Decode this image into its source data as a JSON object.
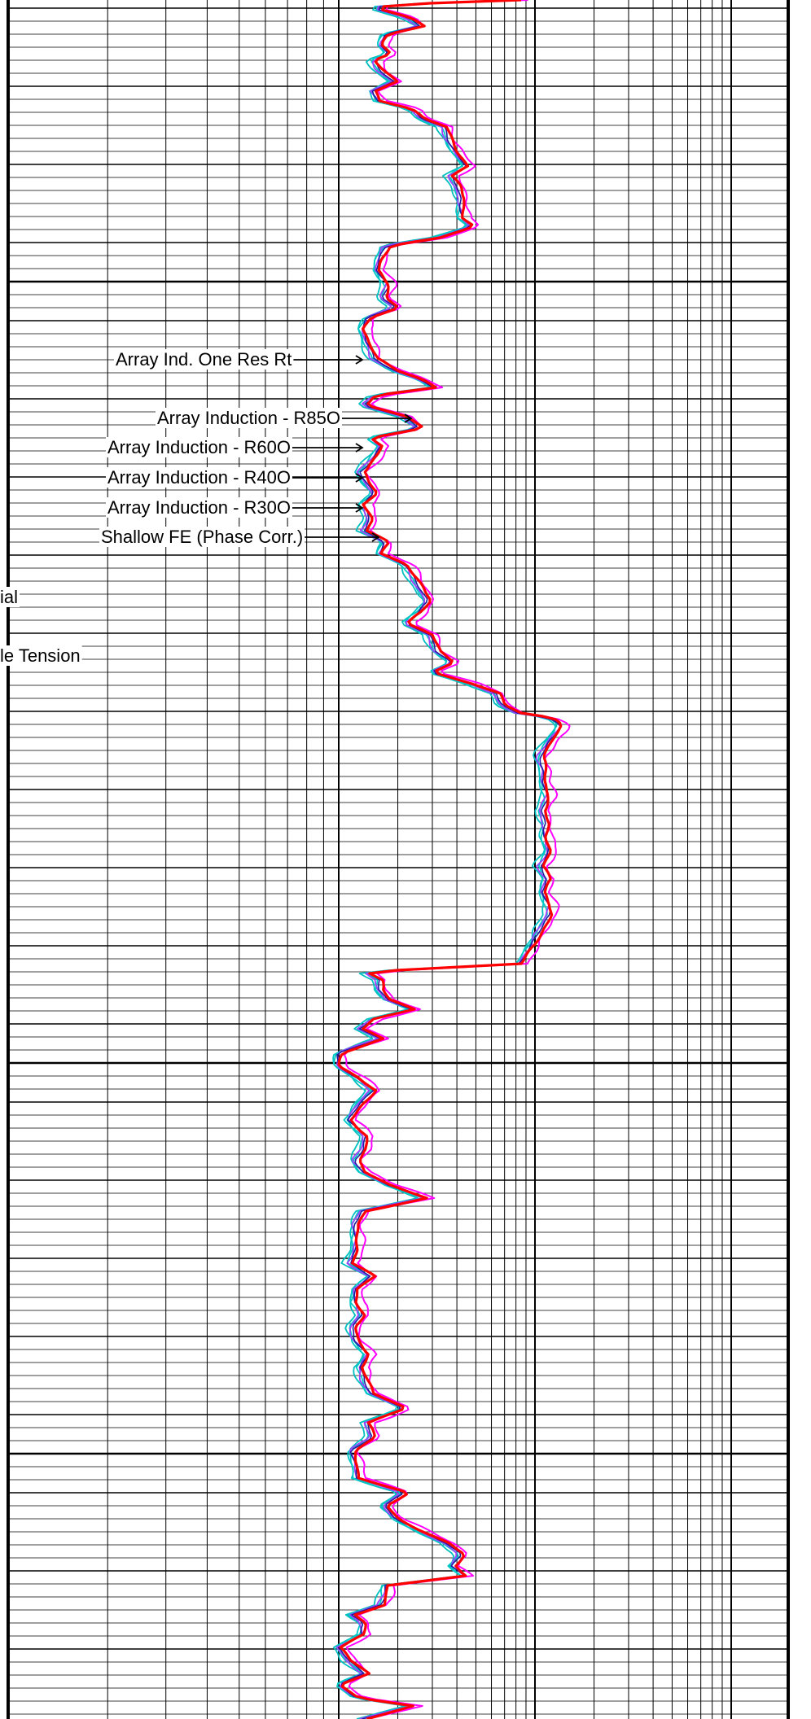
{
  "chart_data": {
    "type": "line",
    "x_scale": "log",
    "grid": true,
    "curve_labels": [
      "Array Ind. One Res Rt",
      "Array Induction - R85O",
      "Array Induction - R60O",
      "Array Induction - R40O",
      "Array Induction - R30O",
      "Shallow FE (Phase Corr.)",
      "ial",
      "le Tension"
    ],
    "series": [
      {
        "name": "Array Ind. One Res Rt",
        "color": "#ff0000"
      },
      {
        "name": "Array Induction - R85O",
        "color": "#1f1f9f"
      },
      {
        "name": "Array Induction - R60O",
        "color": "#9f3fff"
      },
      {
        "name": "Array Induction - R40O",
        "color": "#00c8c8"
      },
      {
        "name": "Array Induction - R30O",
        "color": "#00bfbf"
      },
      {
        "name": "Shallow FE (Phase Corr.)",
        "color": "#ff00ff"
      }
    ],
    "colors": {
      "grid": "#000000",
      "background": "#ffffff"
    }
  }
}
